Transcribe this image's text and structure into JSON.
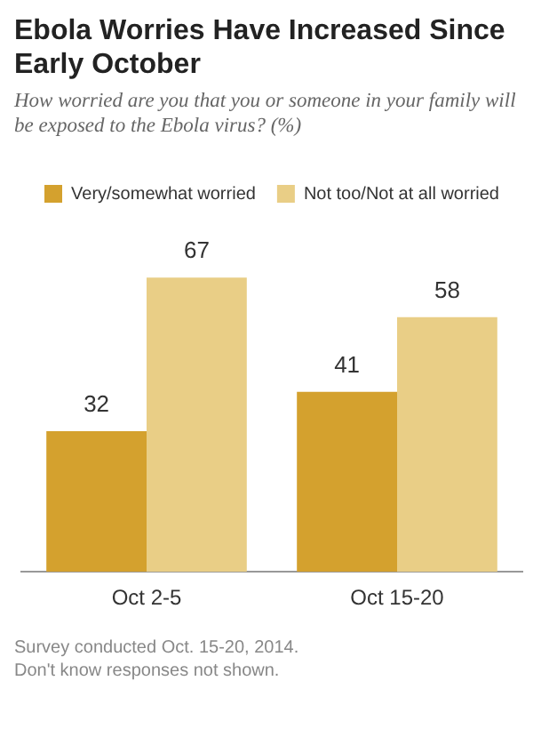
{
  "chart_data": {
    "type": "bar",
    "title": "Ebola Worries Have Increased Since Early October",
    "subtitle": "How worried are you that you or someone in your family will be exposed to the Ebola virus? (%)",
    "categories": [
      "Oct 2-5",
      "Oct 15-20"
    ],
    "series": [
      {
        "name": "Very/somewhat worried",
        "color": "#d4a12e",
        "values": [
          32,
          41
        ]
      },
      {
        "name": "Not too/Not at all worried",
        "color": "#e9ce86",
        "values": [
          67,
          58
        ]
      }
    ],
    "data_labels": true,
    "legend": "top",
    "grid": false,
    "annotations": [
      "Survey conducted Oct. 15-20, 2014.",
      "Don't know responses not shown."
    ]
  }
}
